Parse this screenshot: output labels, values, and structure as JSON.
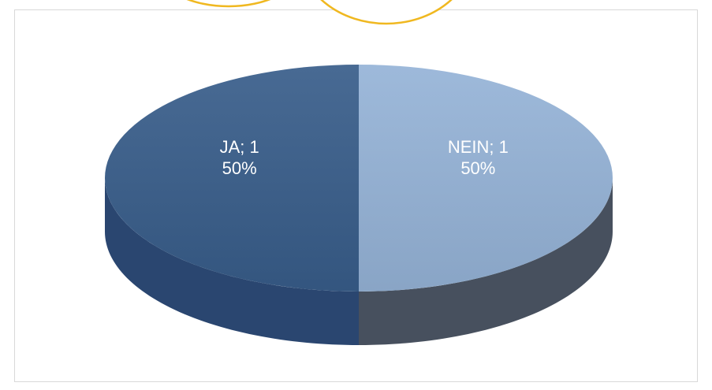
{
  "chart_data": {
    "type": "pie3d",
    "categories": [
      "JA",
      "NEIN"
    ],
    "values": [
      1,
      1
    ],
    "value_labels": [
      "JA; 1",
      "NEIN; 1"
    ],
    "percents": [
      50,
      50
    ],
    "percent_labels": [
      "50%",
      "50%"
    ],
    "colors": [
      "#385d8a",
      "#95b3d7"
    ],
    "side_colors": [
      "#2a4670",
      "#47505e"
    ]
  }
}
